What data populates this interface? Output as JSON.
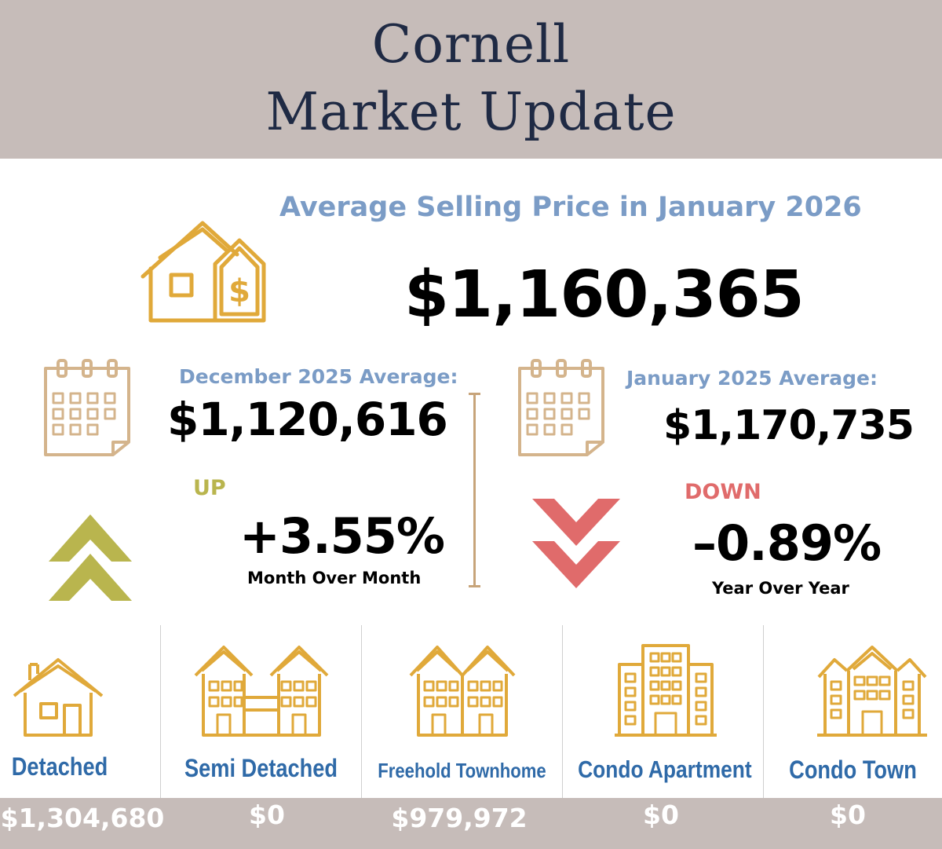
{
  "header": {
    "title_line1": "Cornell",
    "title_line2": "Market Update"
  },
  "main": {
    "headline": "Average Selling Price in January 2026",
    "average_price": "$1,160,365"
  },
  "comparison_month": {
    "label": "December 2025 Average:",
    "price": "$1,120,616",
    "trend_word": "UP",
    "change": "+3.55%",
    "caption": "Month Over Month"
  },
  "comparison_year": {
    "label": "January 2025 Average:",
    "price": "$1,170,735",
    "trend_word": "DOWN",
    "change": "–0.89%",
    "caption": "Year Over Year"
  },
  "property_types": [
    {
      "label": "Detached",
      "price": "$1,304,680"
    },
    {
      "label": "Semi Detached",
      "price": "$0"
    },
    {
      "label": "Freehold Townhome",
      "price": "$979,972"
    },
    {
      "label": "Condo Apartment",
      "price": "$0"
    },
    {
      "label": "Condo Town",
      "price": "$0"
    }
  ],
  "colors": {
    "header_bg": "#c6bcb9",
    "title_navy": "#1f2a44",
    "label_blue": "#7b9cc6",
    "type_blue": "#2f6aa8",
    "icon_gold": "#e0a93a",
    "calendar_tan": "#d4b48c",
    "up_olive": "#b9b54e",
    "down_red": "#e06b6b"
  }
}
